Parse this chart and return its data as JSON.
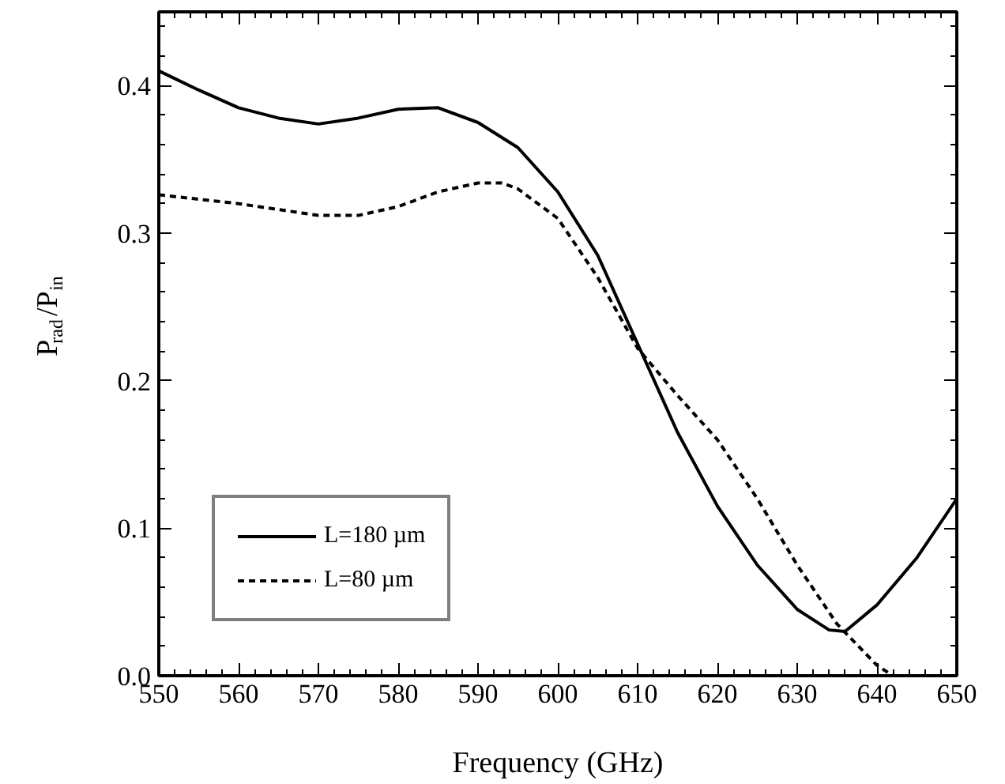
{
  "chart_data": {
    "type": "line",
    "xlabel": "Frequency (GHz)",
    "ylabel": "P$_{rad}$/P$_{in}$",
    "xlim": [
      550,
      650
    ],
    "ylim": [
      0,
      0.45
    ],
    "xticks": [
      550,
      560,
      570,
      580,
      590,
      600,
      610,
      620,
      630,
      640,
      650
    ],
    "yticks": [
      {
        "value": 0,
        "label": "0.0"
      },
      0.1,
      0.2,
      0.3,
      0.4
    ],
    "grid": false,
    "legend": "bottom left",
    "marker": "none",
    "series": [
      {
        "name": "L=180 µm",
        "color": "#000000",
        "line_style": "solid",
        "x": [
          550,
          555,
          560,
          565,
          570,
          575,
          580,
          585,
          590,
          595,
          600,
          605,
          610,
          615,
          620,
          625,
          630,
          634,
          636,
          640,
          645,
          650
        ],
        "values": [
          0.41,
          0.397,
          0.385,
          0.378,
          0.374,
          0.378,
          0.384,
          0.385,
          0.375,
          0.358,
          0.328,
          0.285,
          0.225,
          0.165,
          0.115,
          0.075,
          0.045,
          0.031,
          0.03,
          0.048,
          0.08,
          0.12
        ]
      },
      {
        "name": "L=80 µm",
        "color": "#000000",
        "line_style": "dashed",
        "x": [
          550,
          560,
          570,
          575,
          580,
          585,
          590,
          593,
          595,
          600,
          605,
          610,
          615,
          620,
          625,
          630,
          635,
          640,
          642
        ],
        "values": [
          0.326,
          0.32,
          0.312,
          0.312,
          0.318,
          0.328,
          0.334,
          0.334,
          0.33,
          0.31,
          0.27,
          0.222,
          0.19,
          0.16,
          0.12,
          0.075,
          0.035,
          0.007,
          0.0
        ]
      }
    ]
  }
}
